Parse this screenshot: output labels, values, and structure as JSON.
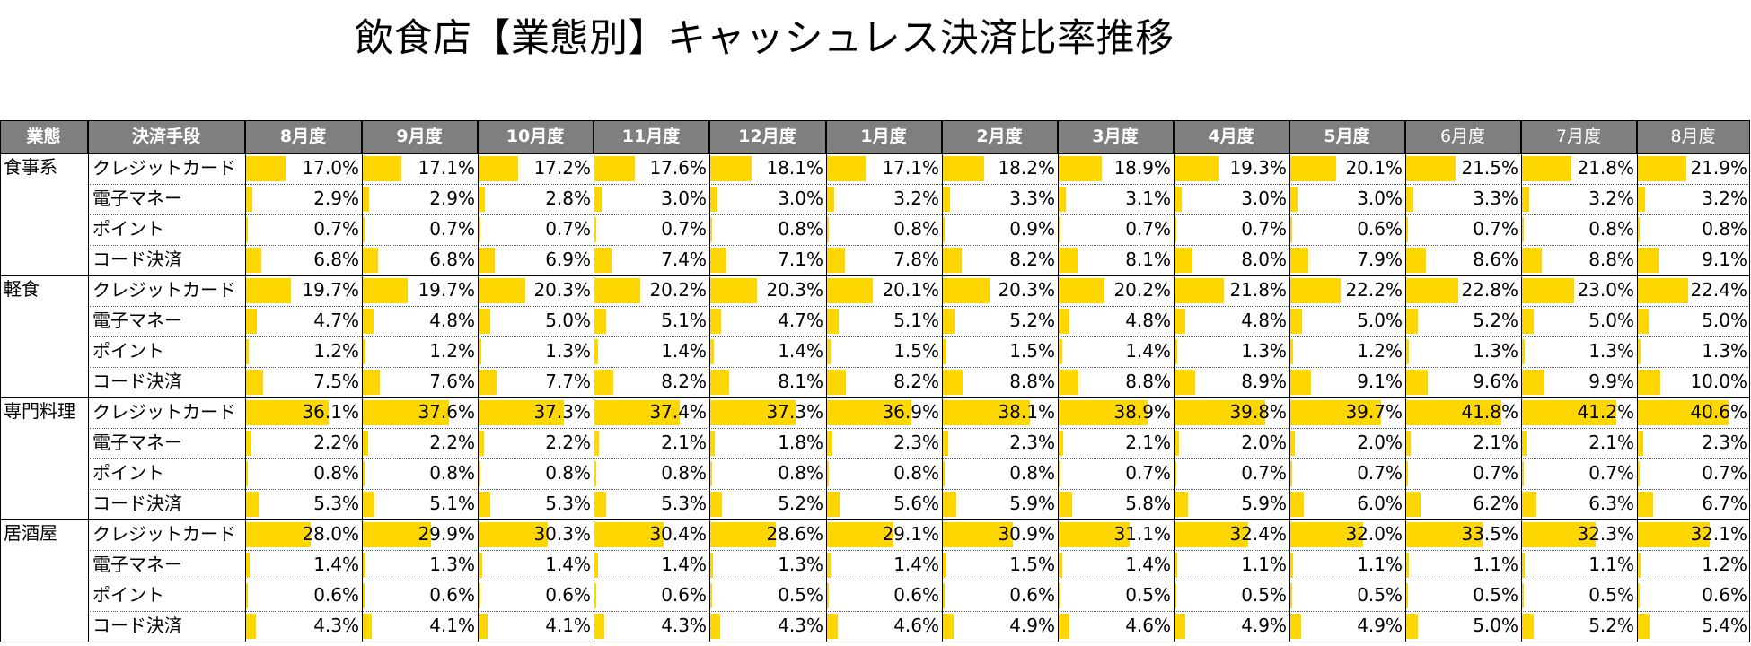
{
  "title": "飲食店【業態別】キャッシュレス決済比率推移",
  "header": {
    "category": "業態",
    "method": "決済手段"
  },
  "chart_data": {
    "type": "table",
    "months": [
      "8月度",
      "9月度",
      "10月度",
      "11月度",
      "12月度",
      "1月度",
      "2月度",
      "3月度",
      "4月度",
      "5月度",
      "6月度",
      "7月度",
      "8月度"
    ],
    "groups": [
      {
        "name": "食事系",
        "rows": [
          {
            "method": "クレジットカード",
            "values": [
              "17.0%",
              "17.1%",
              "17.2%",
              "17.6%",
              "18.1%",
              "17.1%",
              "18.2%",
              "18.9%",
              "19.3%",
              "20.1%",
              "21.5%",
              "21.8%",
              "21.9%"
            ]
          },
          {
            "method": "電子マネー",
            "values": [
              "2.9%",
              "2.9%",
              "2.8%",
              "3.0%",
              "3.0%",
              "3.2%",
              "3.3%",
              "3.1%",
              "3.0%",
              "3.0%",
              "3.3%",
              "3.2%",
              "3.2%"
            ]
          },
          {
            "method": "ポイント",
            "values": [
              "0.7%",
              "0.7%",
              "0.7%",
              "0.7%",
              "0.8%",
              "0.8%",
              "0.9%",
              "0.7%",
              "0.7%",
              "0.6%",
              "0.7%",
              "0.8%",
              "0.8%"
            ]
          },
          {
            "method": "コード決済",
            "values": [
              "6.8%",
              "6.8%",
              "6.9%",
              "7.4%",
              "7.1%",
              "7.8%",
              "8.2%",
              "8.1%",
              "8.0%",
              "7.9%",
              "8.6%",
              "8.8%",
              "9.1%"
            ]
          }
        ]
      },
      {
        "name": "軽食",
        "rows": [
          {
            "method": "クレジットカード",
            "values": [
              "19.7%",
              "19.7%",
              "20.3%",
              "20.2%",
              "20.3%",
              "20.1%",
              "20.3%",
              "20.2%",
              "21.8%",
              "22.2%",
              "22.8%",
              "23.0%",
              "22.4%"
            ]
          },
          {
            "method": "電子マネー",
            "values": [
              "4.7%",
              "4.8%",
              "5.0%",
              "5.1%",
              "4.7%",
              "5.1%",
              "5.2%",
              "4.8%",
              "4.8%",
              "5.0%",
              "5.2%",
              "5.0%",
              "5.0%"
            ]
          },
          {
            "method": "ポイント",
            "values": [
              "1.2%",
              "1.2%",
              "1.3%",
              "1.4%",
              "1.4%",
              "1.5%",
              "1.5%",
              "1.4%",
              "1.3%",
              "1.2%",
              "1.3%",
              "1.3%",
              "1.3%"
            ]
          },
          {
            "method": "コード決済",
            "values": [
              "7.5%",
              "7.6%",
              "7.7%",
              "8.2%",
              "8.1%",
              "8.2%",
              "8.8%",
              "8.8%",
              "8.9%",
              "9.1%",
              "9.6%",
              "9.9%",
              "10.0%"
            ]
          }
        ]
      },
      {
        "name": "専門料理",
        "rows": [
          {
            "method": "クレジットカード",
            "values": [
              "36.1%",
              "37.6%",
              "37.3%",
              "37.4%",
              "37.3%",
              "36.9%",
              "38.1%",
              "38.9%",
              "39.8%",
              "39.7%",
              "41.8%",
              "41.2%",
              "40.6%"
            ]
          },
          {
            "method": "電子マネー",
            "values": [
              "2.2%",
              "2.2%",
              "2.2%",
              "2.1%",
              "1.8%",
              "2.3%",
              "2.3%",
              "2.1%",
              "2.0%",
              "2.0%",
              "2.1%",
              "2.1%",
              "2.3%"
            ]
          },
          {
            "method": "ポイント",
            "values": [
              "0.8%",
              "0.8%",
              "0.8%",
              "0.8%",
              "0.8%",
              "0.8%",
              "0.8%",
              "0.7%",
              "0.7%",
              "0.7%",
              "0.7%",
              "0.7%",
              "0.7%"
            ]
          },
          {
            "method": "コード決済",
            "values": [
              "5.3%",
              "5.1%",
              "5.3%",
              "5.3%",
              "5.2%",
              "5.6%",
              "5.9%",
              "5.8%",
              "5.9%",
              "6.0%",
              "6.2%",
              "6.3%",
              "6.7%"
            ]
          }
        ]
      },
      {
        "name": "居酒屋",
        "rows": [
          {
            "method": "クレジットカード",
            "values": [
              "28.0%",
              "29.9%",
              "30.3%",
              "30.4%",
              "28.6%",
              "29.1%",
              "30.9%",
              "31.1%",
              "32.4%",
              "32.0%",
              "33.5%",
              "32.3%",
              "32.1%"
            ]
          },
          {
            "method": "電子マネー",
            "values": [
              "1.4%",
              "1.3%",
              "1.4%",
              "1.4%",
              "1.3%",
              "1.4%",
              "1.5%",
              "1.4%",
              "1.1%",
              "1.1%",
              "1.1%",
              "1.1%",
              "1.2%"
            ]
          },
          {
            "method": "ポイント",
            "values": [
              "0.6%",
              "0.6%",
              "0.6%",
              "0.6%",
              "0.5%",
              "0.6%",
              "0.6%",
              "0.5%",
              "0.5%",
              "0.5%",
              "0.5%",
              "0.5%",
              "0.6%"
            ]
          },
          {
            "method": "コード決済",
            "values": [
              "4.3%",
              "4.1%",
              "4.1%",
              "4.3%",
              "4.3%",
              "4.6%",
              "4.9%",
              "4.6%",
              "4.9%",
              "4.9%",
              "5.0%",
              "5.2%",
              "5.4%"
            ]
          }
        ]
      }
    ],
    "bar_scale_max": 50,
    "bar_color": "#ffd700"
  }
}
